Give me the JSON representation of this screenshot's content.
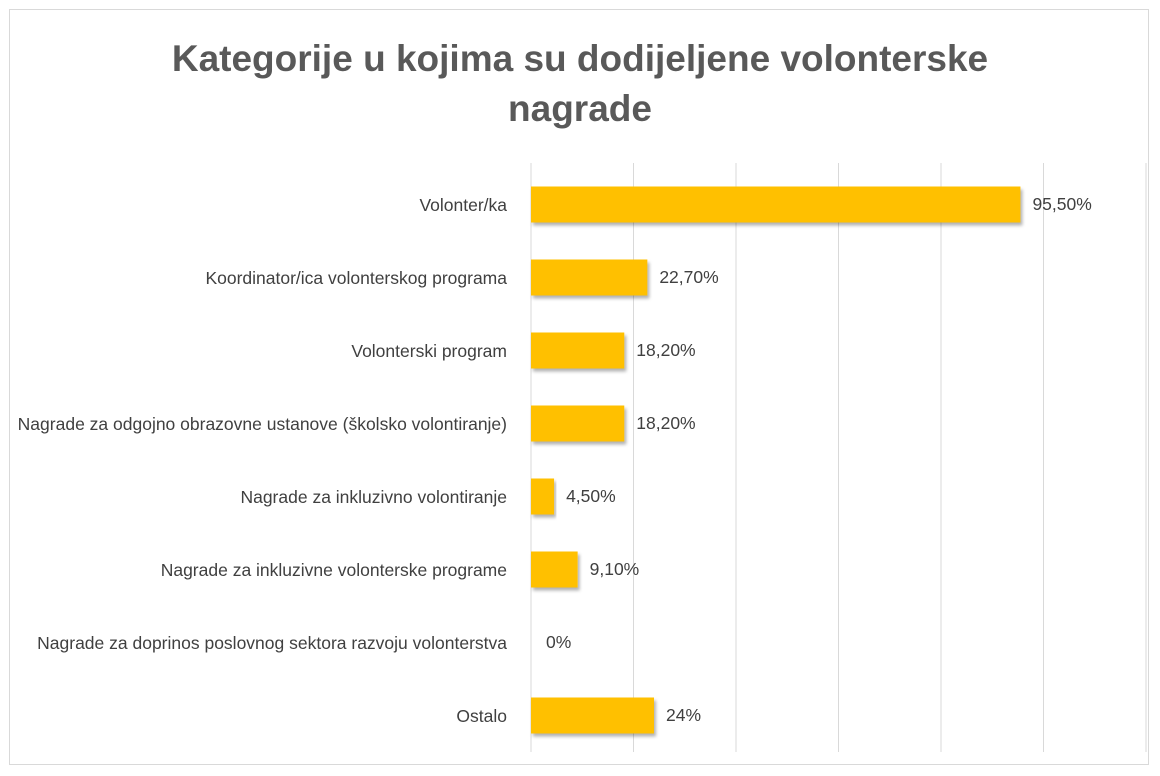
{
  "chart_data": {
    "type": "hbar",
    "title": "Kategorije u kojima su dodijeljene volonterske nagrade",
    "categories": [
      "Volonter/ka",
      "Koordinator/ica volonterskog programa",
      "Volonterski program",
      "Nagrade za odgojno obrazovne ustanove (školsko volontiranje)",
      "Nagrade za inkluzivno volontiranje",
      "Nagrade za inkluzivne volonterske programe",
      "Nagrade za doprinos poslovnog sektora razvoju volonterstva",
      "Ostalo"
    ],
    "values": [
      95.5,
      22.7,
      18.2,
      18.2,
      4.5,
      9.1,
      0,
      24
    ],
    "value_labels": [
      "95,50%",
      "22,70%",
      "18,20%",
      "18,20%",
      "4,50%",
      "9,10%",
      "0%",
      "24%"
    ],
    "color": "#ffc000",
    "xlim": [
      0,
      120
    ],
    "xticks": [
      0,
      20,
      40,
      60,
      80,
      100,
      120
    ],
    "grid": true
  }
}
